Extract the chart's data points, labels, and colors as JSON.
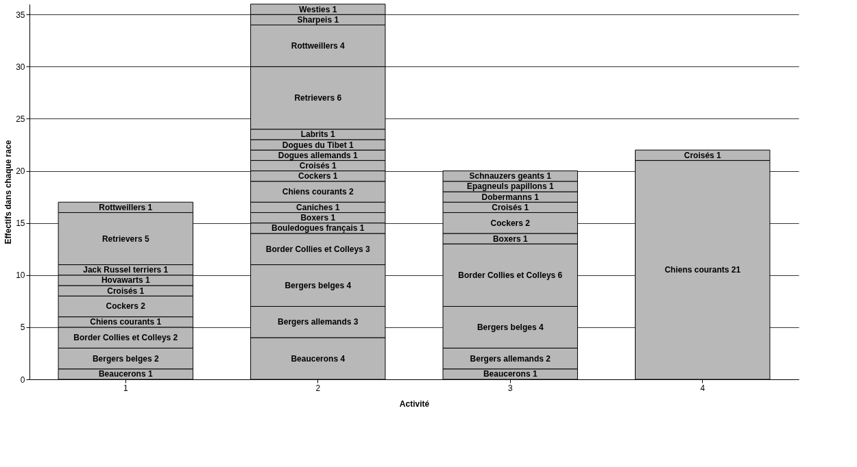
{
  "chart_data": {
    "type": "bar",
    "stacked": true,
    "xlabel": "Activité",
    "ylabel": "Effectifs dans chaque race",
    "categories": [
      "1",
      "2",
      "3",
      "4"
    ],
    "ylim": [
      0,
      36
    ],
    "yticks": [
      0,
      5,
      10,
      15,
      20,
      25,
      30,
      35
    ],
    "grid": "y",
    "series": [
      {
        "color": "#b8b8b8",
        "values": [
          1,
          4,
          1,
          21
        ],
        "value_labels": [
          "Beaucerons 1",
          "Beaucerons 4",
          "Beaucerons 1",
          "Chiens courants 21"
        ]
      },
      {
        "color": "#b8b8b8",
        "values": [
          2,
          3,
          2,
          1
        ],
        "value_labels": [
          "Bergers belges 2",
          "Bergers allemands 3",
          "Bergers allemands 2",
          "Croisés 1"
        ]
      },
      {
        "color": "#b8b8b8",
        "values": [
          2,
          4,
          4,
          null
        ],
        "value_labels": [
          "Border Collies et Colleys 2",
          "Bergers belges 4",
          "Bergers belges 4",
          null
        ]
      },
      {
        "color": "#b8b8b8",
        "values": [
          1,
          3,
          6,
          null
        ],
        "value_labels": [
          "Chiens courants 1",
          "Border Collies et Colleys 3",
          "Border Collies et Colleys 6",
          null
        ]
      },
      {
        "color": "#b8b8b8",
        "values": [
          2,
          1,
          1,
          null
        ],
        "value_labels": [
          "Cockers 2",
          "Bouledogues français 1",
          "Boxers 1",
          null
        ]
      },
      {
        "color": "#b8b8b8",
        "values": [
          1,
          1,
          2,
          null
        ],
        "value_labels": [
          "Croisés 1",
          "Boxers 1",
          "Cockers 2",
          null
        ]
      },
      {
        "color": "#b8b8b8",
        "values": [
          1,
          1,
          1,
          null
        ],
        "value_labels": [
          "Hovawarts 1",
          "Caniches 1",
          "Croisés 1",
          null
        ]
      },
      {
        "color": "#b8b8b8",
        "values": [
          1,
          2,
          1,
          null
        ],
        "value_labels": [
          "Jack Russel terriers 1",
          "Chiens courants 2",
          "Dobermanns 1",
          null
        ]
      },
      {
        "color": "#b8b8b8",
        "values": [
          5,
          1,
          1,
          null
        ],
        "value_labels": [
          "Retrievers 5",
          "Cockers 1",
          "Epagneuls papillons 1",
          null
        ]
      },
      {
        "color": "#b8b8b8",
        "values": [
          1,
          1,
          1,
          null
        ],
        "value_labels": [
          "Rottweillers 1",
          "Croisés 1",
          "Schnauzers geants 1",
          null
        ]
      },
      {
        "color": "#b8b8b8",
        "values": [
          null,
          1,
          null,
          null
        ],
        "value_labels": [
          null,
          "Dogues allemands 1",
          null,
          null
        ]
      },
      {
        "color": "#b8b8b8",
        "values": [
          null,
          1,
          null,
          null
        ],
        "value_labels": [
          null,
          "Dogues du Tibet 1",
          null,
          null
        ]
      },
      {
        "color": "#b8b8b8",
        "values": [
          null,
          1,
          null,
          null
        ],
        "value_labels": [
          null,
          "Labrits 1",
          null,
          null
        ]
      },
      {
        "color": "#b8b8b8",
        "values": [
          null,
          6,
          null,
          null
        ],
        "value_labels": [
          null,
          "Retrievers 6",
          null,
          null
        ]
      },
      {
        "color": "#b8b8b8",
        "values": [
          null,
          4,
          null,
          null
        ],
        "value_labels": [
          null,
          "Rottweillers 4",
          null,
          null
        ]
      },
      {
        "color": "#b8b8b8",
        "values": [
          null,
          1,
          null,
          null
        ],
        "value_labels": [
          null,
          "Sharpeis 1",
          null,
          null
        ]
      },
      {
        "color": "#b8b8b8",
        "values": [
          null,
          1,
          null,
          null
        ],
        "value_labels": [
          null,
          "Westies 1",
          null,
          null
        ]
      }
    ]
  }
}
